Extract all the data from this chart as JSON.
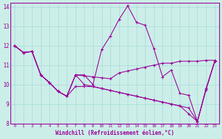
{
  "background_color": "#cceee8",
  "line_color": "#990099",
  "grid_color": "#aadddd",
  "xlabel": "Windchill (Refroidissement éolien,°C)",
  "xlim": [
    -0.5,
    23.5
  ],
  "ylim": [
    8,
    14.2
  ],
  "yticks": [
    8,
    9,
    10,
    11,
    12,
    13,
    14
  ],
  "xticks": [
    0,
    1,
    2,
    3,
    4,
    5,
    6,
    7,
    8,
    9,
    10,
    11,
    12,
    13,
    14,
    15,
    16,
    17,
    18,
    19,
    20,
    21,
    22,
    23
  ],
  "series": [
    [
      12.0,
      11.65,
      11.7,
      10.5,
      10.1,
      9.65,
      9.4,
      10.5,
      10.5,
      10.0,
      11.8,
      12.5,
      13.35,
      14.05,
      13.2,
      13.05,
      11.85,
      10.4,
      10.75,
      9.55,
      9.45,
      8.1,
      9.8,
      11.2
    ],
    [
      12.0,
      11.65,
      11.7,
      10.5,
      10.1,
      9.65,
      9.4,
      10.5,
      10.45,
      10.4,
      10.35,
      10.3,
      10.6,
      10.7,
      10.8,
      10.9,
      11.0,
      11.1,
      11.1,
      11.2,
      11.2,
      11.2,
      11.25,
      11.25
    ],
    [
      12.0,
      11.65,
      11.7,
      10.5,
      10.1,
      9.65,
      9.4,
      10.5,
      10.0,
      9.9,
      9.8,
      9.7,
      9.6,
      9.5,
      9.4,
      9.3,
      9.2,
      9.1,
      9.0,
      8.9,
      8.8,
      8.1,
      9.75,
      11.2
    ],
    [
      12.0,
      11.65,
      11.7,
      10.5,
      10.1,
      9.65,
      9.4,
      9.9,
      9.9,
      9.9,
      9.8,
      9.7,
      9.6,
      9.5,
      9.4,
      9.3,
      9.2,
      9.1,
      9.0,
      8.9,
      8.5,
      8.1,
      9.75,
      11.2
    ]
  ]
}
